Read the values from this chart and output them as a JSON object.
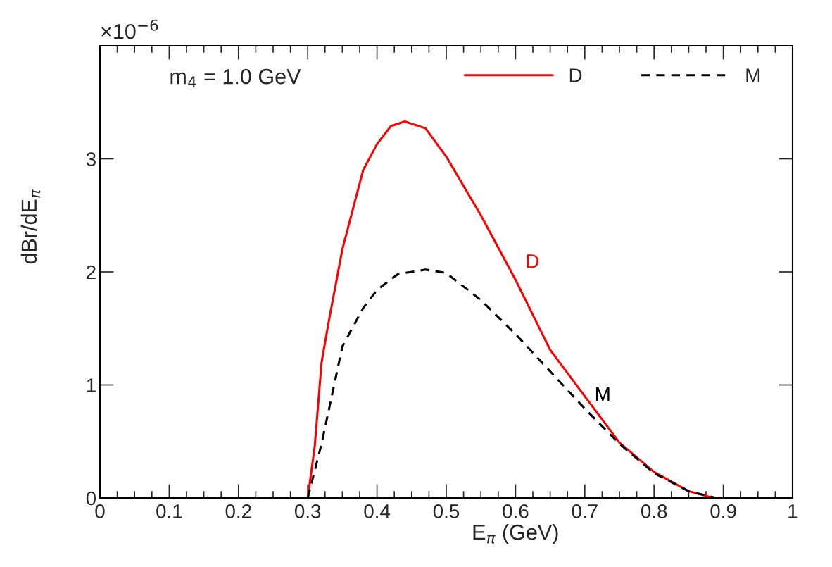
{
  "chart_data": {
    "type": "line",
    "xlabel": "E$_{π}$ (GeV)",
    "ylabel": "dBr/dE$_{π}$",
    "annotations": [
      "×10$^{−6}$",
      "m$_{4}$ = 1.0 GeV"
    ],
    "xlim": [
      0,
      1
    ],
    "ylim": [
      0,
      4
    ],
    "xticks": [
      0,
      0.1,
      0.2,
      0.3,
      0.4,
      0.5,
      0.6,
      0.7,
      0.8,
      0.9,
      1
    ],
    "yticks": [
      0,
      1,
      2,
      3
    ],
    "grid": false,
    "legend": "top right",
    "marker": "none",
    "series": [
      {
        "name": "D",
        "color": "#ff0000",
        "line_style": "solid",
        "x": [
          0.3,
          0.31,
          0.32,
          0.33,
          0.35,
          0.38,
          0.4,
          0.42,
          0.44,
          0.47,
          0.5,
          0.55,
          0.6,
          0.65,
          0.7,
          0.75,
          0.8,
          0.85,
          0.88,
          0.89
        ],
        "values": [
          0,
          0.45,
          1.2,
          1.55,
          2.2,
          2.9,
          3.13,
          3.29,
          3.33,
          3.27,
          3.02,
          2.5,
          1.93,
          1.31,
          0.9,
          0.49,
          0.23,
          0.06,
          0.01,
          0
        ]
      },
      {
        "name": "M",
        "color": "#000000",
        "line_style": "dashed",
        "x": [
          0.3,
          0.32,
          0.35,
          0.38,
          0.4,
          0.43,
          0.47,
          0.5,
          0.55,
          0.6,
          0.65,
          0.7,
          0.75,
          0.8,
          0.85,
          0.89
        ],
        "values": [
          0,
          0.48,
          1.34,
          1.68,
          1.84,
          1.98,
          2.02,
          1.99,
          1.75,
          1.45,
          1.12,
          0.79,
          0.48,
          0.22,
          0.06,
          0
        ]
      }
    ]
  }
}
